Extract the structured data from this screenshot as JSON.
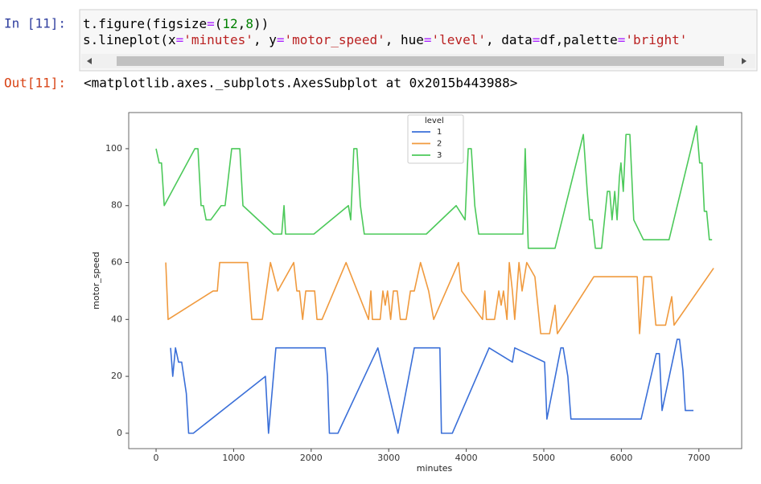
{
  "cell": {
    "prompt_in": "In [11]:",
    "code": [
      [
        "t.figure(figsize",
        "=",
        "(",
        "12",
        ",",
        "8",
        "))"
      ],
      [
        "s.lineplot(x",
        "=",
        "'minutes'",
        ", y",
        "=",
        "'motor_speed'",
        ", hue",
        "=",
        "'level'",
        ", data",
        "=",
        "df,palette",
        "=",
        "'bright'"
      ]
    ],
    "prompt_out": "Out[11]:",
    "output": "<matplotlib.axes._subplots.AxesSubplot at 0x2015b443988>"
  },
  "chart_data": {
    "type": "line",
    "xlabel": "minutes",
    "ylabel": "motor_speed",
    "xlim": [
      -353,
      7552
    ],
    "ylim": [
      -5.4,
      112.7
    ],
    "xticks": [
      0,
      1000,
      2000,
      3000,
      4000,
      5000,
      6000,
      7000
    ],
    "yticks": [
      0,
      20,
      40,
      60,
      80,
      100
    ],
    "legend": {
      "title": "level",
      "position": "upper center"
    },
    "series": [
      {
        "name": "1",
        "color": "#3a6fd8",
        "x": [
          187,
          215,
          250,
          290,
          330,
          390,
          420,
          480,
          1410,
          1450,
          1545,
          2180,
          2210,
          2235,
          2345,
          2860,
          3120,
          3330,
          3660,
          3680,
          3820,
          4295,
          4595,
          4625,
          5010,
          5040,
          5220,
          5250,
          5310,
          5350,
          6255,
          6450,
          6490,
          6525,
          6720,
          6750,
          6795,
          6825,
          6930
        ],
        "values": [
          30,
          20,
          30,
          25,
          25,
          14,
          0,
          0,
          20,
          0,
          30,
          30,
          20,
          0,
          0,
          30,
          0,
          30,
          30,
          0,
          0,
          30,
          25,
          30,
          25,
          5,
          30,
          30,
          20,
          5,
          5,
          28,
          28,
          8,
          33,
          33,
          22,
          8,
          8
        ]
      },
      {
        "name": "2",
        "color": "#f09a3e",
        "x": [
          125,
          155,
          735,
          790,
          820,
          1180,
          1235,
          1370,
          1475,
          1570,
          1775,
          1815,
          1850,
          1890,
          1930,
          2045,
          2075,
          2140,
          2450,
          2740,
          2770,
          2790,
          2890,
          2925,
          2955,
          2985,
          3025,
          3060,
          3110,
          3150,
          3225,
          3280,
          3330,
          3410,
          3515,
          3580,
          3900,
          3940,
          4210,
          4240,
          4260,
          4365,
          4420,
          4450,
          4480,
          4525,
          4555,
          4595,
          4625,
          4680,
          4720,
          4780,
          4885,
          4960,
          5075,
          5145,
          5175,
          5645,
          6205,
          6235,
          6290,
          6390,
          6445,
          6570,
          6650,
          6680,
          7190
        ],
        "values": [
          60,
          40,
          50,
          50,
          60,
          60,
          40,
          40,
          60,
          50,
          60,
          50,
          50,
          40,
          50,
          50,
          40,
          40,
          60,
          40,
          50,
          40,
          40,
          50,
          45,
          50,
          40,
          50,
          50,
          40,
          40,
          50,
          50,
          60,
          50,
          40,
          60,
          50,
          40,
          50,
          40,
          40,
          50,
          45,
          50,
          40,
          60,
          50,
          40,
          60,
          50,
          60,
          55,
          35,
          35,
          45,
          35,
          55,
          55,
          35,
          55,
          55,
          38,
          38,
          48,
          38,
          58
        ]
      },
      {
        "name": "3",
        "color": "#4cc95a",
        "x": [
          0,
          40,
          70,
          105,
          500,
          540,
          580,
          610,
          645,
          705,
          840,
          890,
          975,
          1080,
          1120,
          1515,
          1620,
          1650,
          1670,
          2035,
          2480,
          2510,
          2550,
          2590,
          2635,
          2685,
          3485,
          3870,
          3985,
          4025,
          4065,
          4110,
          4160,
          4730,
          4760,
          4800,
          5145,
          5510,
          5560,
          5590,
          5625,
          5665,
          5745,
          5820,
          5850,
          5880,
          5915,
          5945,
          5975,
          5995,
          6025,
          6060,
          6110,
          6160,
          6285,
          6615,
          6970,
          7010,
          7040,
          7070,
          7100,
          7135,
          7170
        ],
        "values": [
          100,
          95,
          95,
          80,
          100,
          100,
          80,
          80,
          75,
          75,
          80,
          80,
          100,
          100,
          80,
          70,
          70,
          80,
          70,
          70,
          80,
          75,
          100,
          100,
          80,
          70,
          70,
          80,
          75,
          100,
          100,
          80,
          70,
          70,
          100,
          65,
          65,
          105,
          85,
          75,
          75,
          65,
          65,
          85,
          85,
          75,
          85,
          75,
          90,
          95,
          85,
          105,
          105,
          75,
          68,
          68,
          108,
          95,
          95,
          78,
          78,
          68,
          68
        ]
      }
    ]
  }
}
